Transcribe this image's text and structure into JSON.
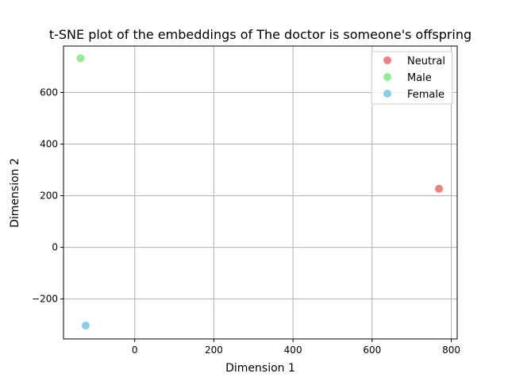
{
  "chart_data": {
    "type": "scatter",
    "title": "t-SNE plot of the embeddings of The doctor is someone's offspring",
    "xlabel": "Dimension 1",
    "ylabel": "Dimension 2",
    "xlim": [
      -180,
      815
    ],
    "ylim": [
      -355,
      780
    ],
    "xticks": [
      0,
      200,
      400,
      600,
      800
    ],
    "yticks": [
      -200,
      0,
      200,
      400,
      600
    ],
    "xtick_labels": [
      "0",
      "200",
      "400",
      "600",
      "800"
    ],
    "ytick_labels": [
      "−200",
      "0",
      "200",
      "400",
      "600"
    ],
    "grid": true,
    "legend_position": "top-right",
    "series": [
      {
        "name": "Neutral",
        "color": "#f08080",
        "points": [
          {
            "x": 769,
            "y": 227
          }
        ]
      },
      {
        "name": "Male",
        "color": "#90ee90",
        "points": [
          {
            "x": -137,
            "y": 733
          }
        ]
      },
      {
        "name": "Female",
        "color": "#87ceeb",
        "points": [
          {
            "x": -124,
            "y": -303
          }
        ]
      }
    ]
  }
}
